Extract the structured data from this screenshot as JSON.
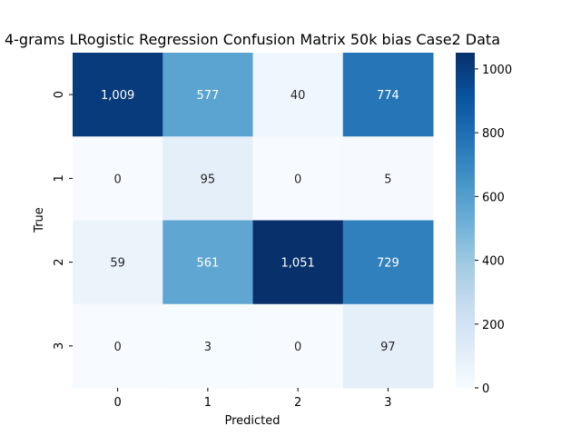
{
  "chart_data": {
    "type": "heatmap",
    "title": "4-grams LRogistic Regression Confusion Matrix 50k bias Case2 Data",
    "xlabel": "Predicted",
    "ylabel": "True",
    "x_categories": [
      "0",
      "1",
      "2",
      "3"
    ],
    "y_categories": [
      "0",
      "1",
      "2",
      "3"
    ],
    "cell_labels": [
      [
        "1,009",
        "577",
        "40",
        "774"
      ],
      [
        "0",
        "95",
        "0",
        "5"
      ],
      [
        "59",
        "561",
        "1,051",
        "729"
      ],
      [
        "0",
        "3",
        "0",
        "97"
      ]
    ],
    "values": [
      [
        1009,
        577,
        40,
        774
      ],
      [
        0,
        95,
        0,
        5
      ],
      [
        59,
        561,
        1051,
        729
      ],
      [
        0,
        3,
        0,
        97
      ]
    ],
    "colorbar": {
      "range": [
        0,
        1051
      ],
      "ticks": [
        0,
        200,
        400,
        600,
        800,
        1000
      ],
      "colormap": "Blues"
    },
    "colors": {
      "low": "#f7fbff",
      "high": "#08306b",
      "light_text": "#ffffff",
      "dark_text": "#262626"
    }
  }
}
